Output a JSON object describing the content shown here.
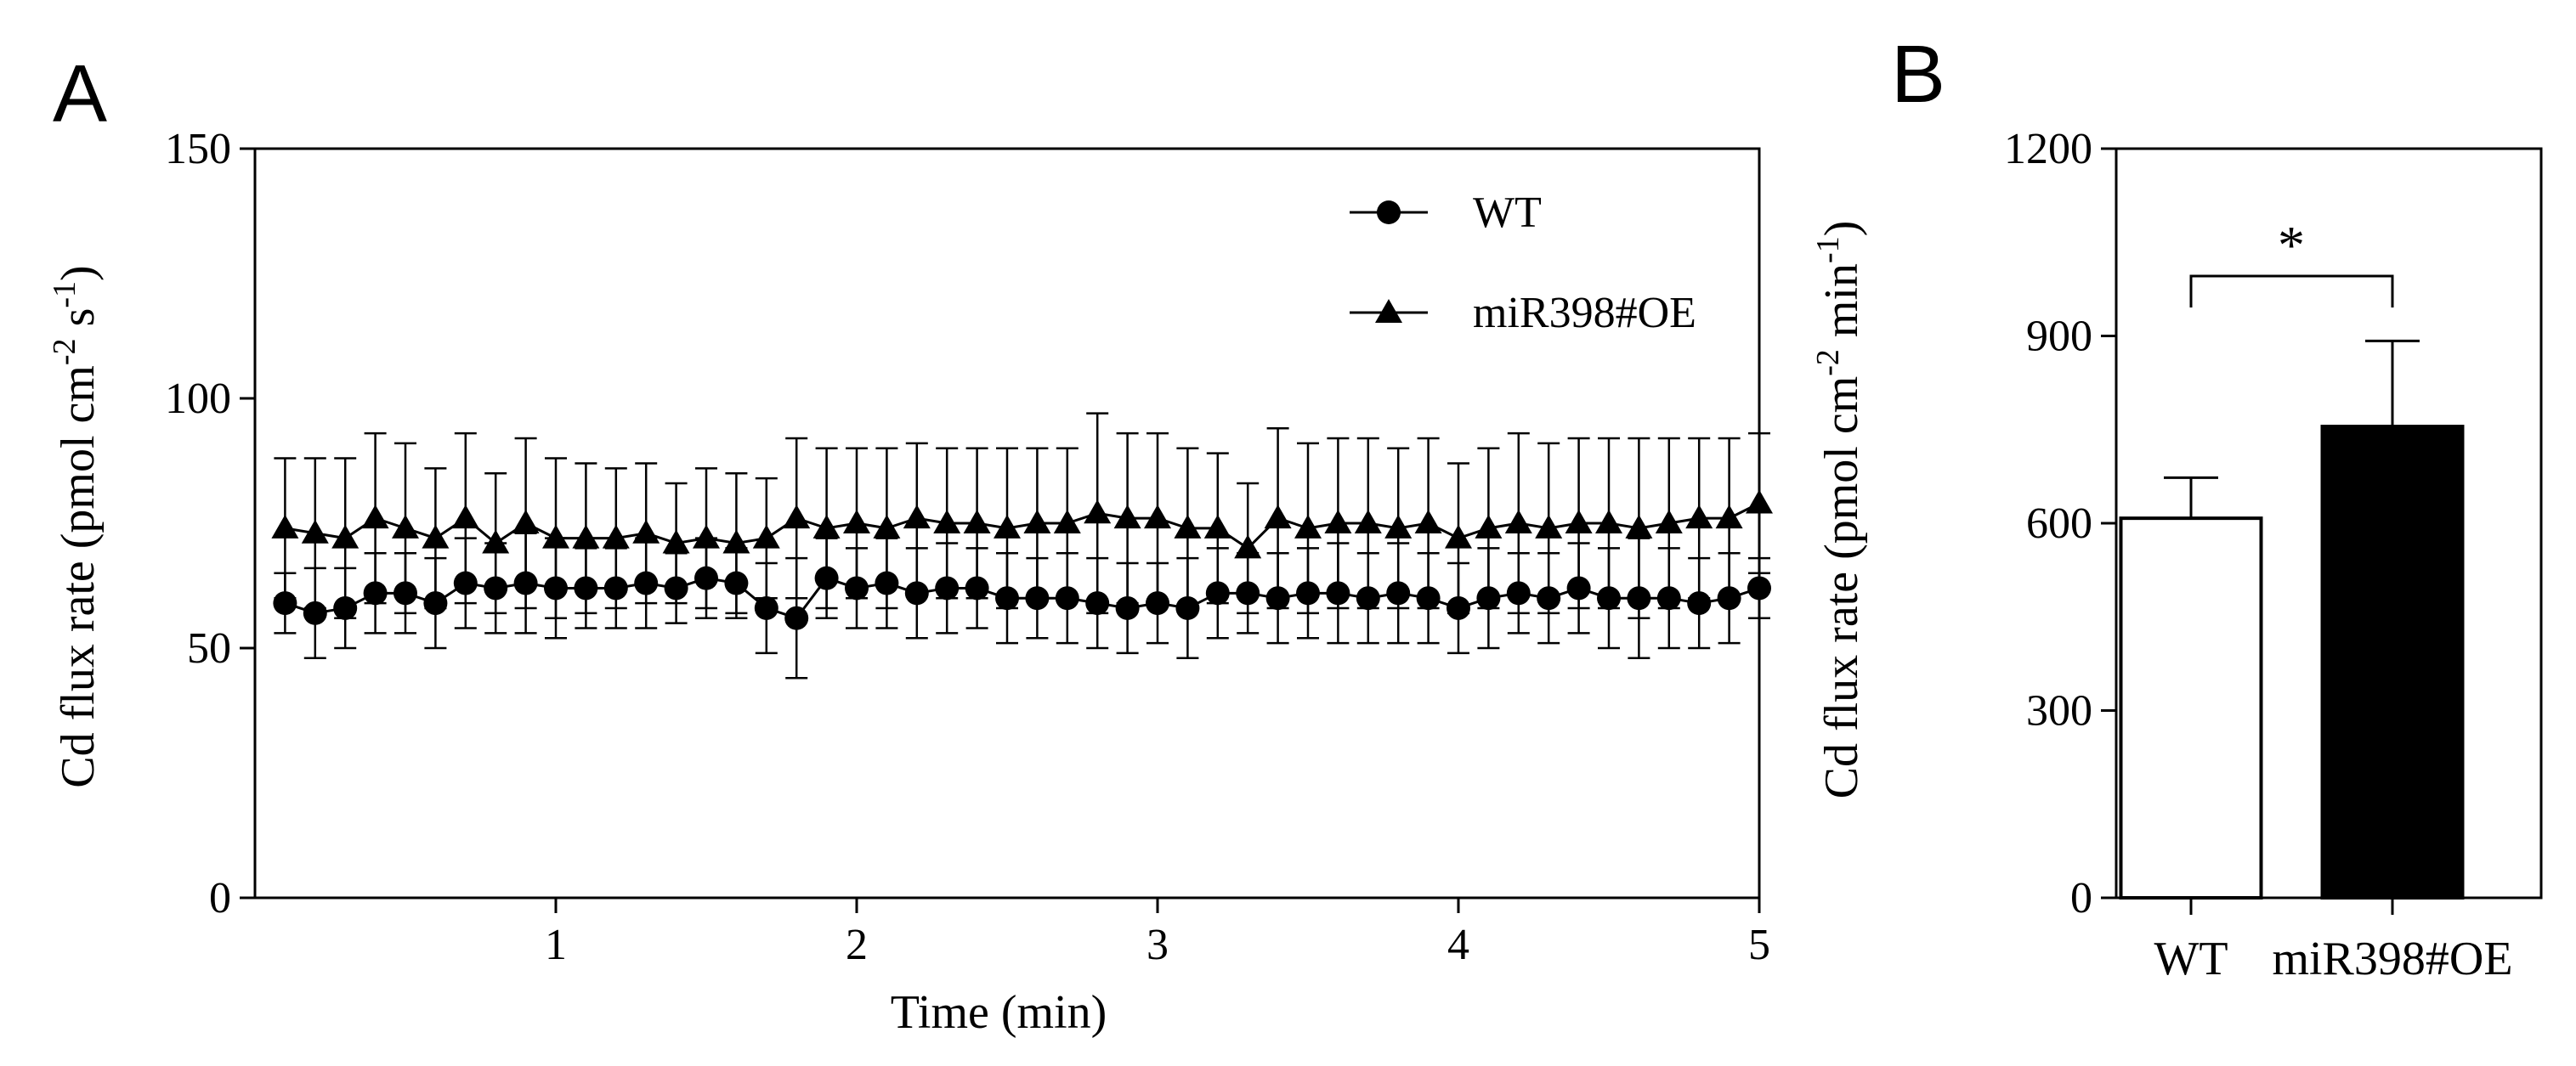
{
  "figure": {
    "panel_a_letter": "A",
    "panel_b_letter": "B"
  },
  "chart_data": [
    {
      "type": "line",
      "panel": "A",
      "xlabel": "Time (min)",
      "ylabel_main": "Cd flux rate (pmol cm",
      "ylabel_sup1": "-2",
      "ylabel_mid": " s",
      "ylabel_sup2": "-1",
      "ylabel_end": ")",
      "xlim": [
        0.0,
        5.0
      ],
      "ylim": [
        0,
        150
      ],
      "xticks": [
        1,
        2,
        3,
        4,
        5
      ],
      "xtick_labels": [
        "1",
        "2",
        "3",
        "4",
        "5"
      ],
      "yticks": [
        0,
        50,
        100,
        150
      ],
      "ytick_labels": [
        "0",
        "50",
        "100",
        "150"
      ],
      "legend_location": "top-right",
      "x": [
        0.1,
        0.2,
        0.3,
        0.4,
        0.5,
        0.6,
        0.7,
        0.8,
        0.9,
        1.0,
        1.1,
        1.2,
        1.3,
        1.4,
        1.5,
        1.6,
        1.7,
        1.8,
        1.9,
        2.0,
        2.1,
        2.2,
        2.3,
        2.4,
        2.5,
        2.6,
        2.7,
        2.8,
        2.9,
        3.0,
        3.1,
        3.2,
        3.3,
        3.4,
        3.5,
        3.6,
        3.7,
        3.8,
        3.9,
        4.0,
        4.1,
        4.2,
        4.3,
        4.4,
        4.5,
        4.6,
        4.7,
        4.8,
        4.9,
        5.0
      ],
      "series": [
        {
          "name": "WT",
          "marker": "circle",
          "values": [
            59,
            57,
            58,
            61,
            61,
            59,
            63,
            62,
            63,
            62,
            62,
            62,
            63,
            62,
            64,
            63,
            58,
            56,
            64,
            62,
            63,
            61,
            62,
            62,
            60,
            60,
            60,
            59,
            58,
            59,
            58,
            61,
            61,
            60,
            61,
            61,
            60,
            61,
            60,
            58,
            60,
            61,
            60,
            62,
            60,
            60,
            60,
            59,
            60,
            62
          ],
          "errors": [
            6,
            9,
            8,
            8,
            8,
            9,
            9,
            9,
            10,
            10,
            8,
            8,
            9,
            7,
            8,
            7,
            9,
            12,
            8,
            8,
            9,
            9,
            9,
            8,
            9,
            8,
            9,
            9,
            9,
            8,
            10,
            9,
            8,
            9,
            9,
            10,
            9,
            10,
            9,
            9,
            10,
            8,
            9,
            9,
            10,
            12,
            10,
            9,
            9,
            6
          ]
        },
        {
          "name": "miR398#OE",
          "marker": "triangle",
          "values": [
            74,
            73,
            72,
            76,
            74,
            72,
            76,
            71,
            75,
            72,
            72,
            72,
            73,
            71,
            72,
            71,
            72,
            76,
            74,
            75,
            74,
            76,
            75,
            75,
            74,
            75,
            75,
            77,
            76,
            76,
            74,
            74,
            70,
            76,
            74,
            75,
            75,
            74,
            75,
            72,
            74,
            75,
            74,
            75,
            75,
            74,
            75,
            76,
            76,
            79
          ],
          "errors": [
            14,
            15,
            16,
            17,
            17,
            14,
            17,
            14,
            17,
            16,
            15,
            14,
            14,
            12,
            14,
            14,
            12,
            16,
            16,
            15,
            16,
            15,
            15,
            15,
            16,
            15,
            15,
            20,
            17,
            17,
            16,
            15,
            13,
            18,
            17,
            17,
            17,
            16,
            17,
            15,
            16,
            18,
            17,
            17,
            17,
            18,
            17,
            16,
            16,
            14
          ]
        }
      ]
    },
    {
      "type": "bar",
      "panel": "B",
      "categories": [
        "WT",
        "miR398#OE"
      ],
      "values": [
        608,
        755
      ],
      "errors": [
        65,
        137
      ],
      "fills": [
        "#ffffff",
        "#000000"
      ],
      "ylabel_main": "Cd flux rate (pmol cm",
      "ylabel_sup1": "-2",
      "ylabel_mid": " min",
      "ylabel_sup2": "-1",
      "ylabel_end": ")",
      "ylim": [
        0,
        1200
      ],
      "yticks": [
        0,
        300,
        600,
        900,
        1200
      ],
      "ytick_labels": [
        "0",
        "300",
        "600",
        "900",
        "1200"
      ],
      "significance": "*"
    }
  ]
}
